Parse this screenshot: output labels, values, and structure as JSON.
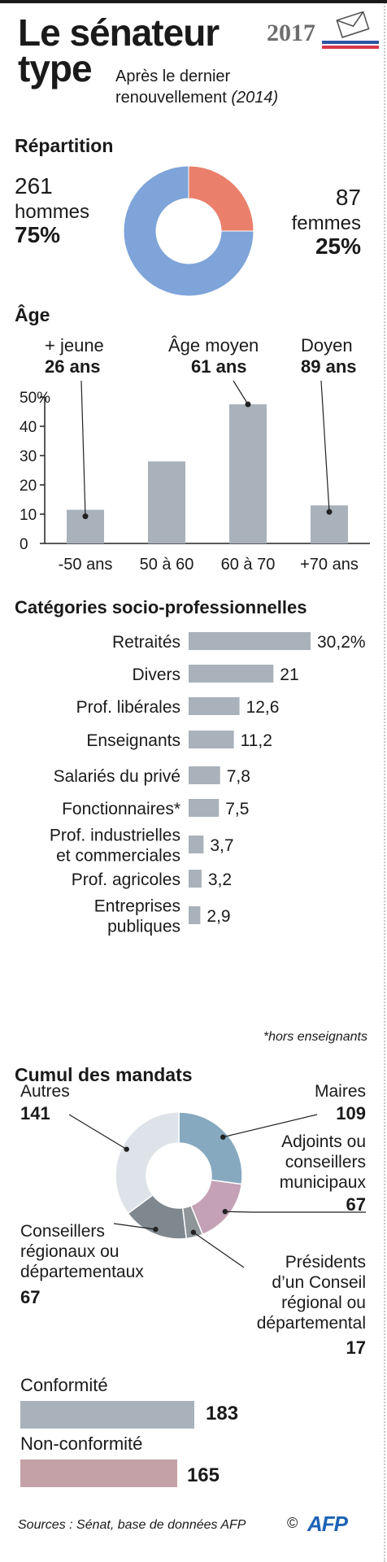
{
  "header": {
    "title_line1": "Le sénateur",
    "title_line2": "type",
    "subtitle_line1": "Après le dernier",
    "subtitle_line2": "renouvellement",
    "subtitle_year": "(2014)",
    "logo_year": "2017",
    "logo_icon": "ballot-envelope-icon"
  },
  "repartition": {
    "title": "Répartition",
    "men_count": "261",
    "men_label": "hommes",
    "men_pct": "75%",
    "women_count": "87",
    "women_label": "femmes",
    "women_pct": "25%"
  },
  "age": {
    "title": "Âge",
    "youngest_label": "+ jeune",
    "youngest_value": "26 ans",
    "average_label": "Âge moyen",
    "average_value": "61 ans",
    "eldest_label": "Doyen",
    "eldest_value": "89 ans"
  },
  "categories": {
    "title": "Catégories socio-professionnelles",
    "footnote": "*hors enseignants"
  },
  "mandats": {
    "title": "Cumul des mandats",
    "conformite_label": "Conformité",
    "conformite_value": "183",
    "non_conformite_label": "Non-conformité",
    "non_conformite_value": "165"
  },
  "footer": {
    "source": "Sources : Sénat, base de données AFP",
    "copyright": "©",
    "logo": "AFP"
  },
  "colors": {
    "men": "#7ea4d9",
    "women": "#ea7f6b",
    "bars": "#a9b2bb",
    "mayors": "#86a9bf",
    "adjoints": "#c4a1b5",
    "presidents": "#8f9699",
    "conseillers": "#7f888f",
    "autres": "#dde3e8",
    "conformite": "#a9b2bb",
    "non_conformite": "#c4a1a6",
    "afp_blue": "#1c62b5"
  },
  "chart_data": [
    {
      "type": "pie",
      "title": "Répartition",
      "donut": true,
      "labels": [
        "hommes",
        "femmes"
      ],
      "values": [
        261,
        87
      ],
      "percent": [
        75,
        25
      ]
    },
    {
      "type": "bar",
      "title": "Âge",
      "ylabel": "%",
      "categories": [
        "-50 ans",
        "50 à 60",
        "60 à 70",
        "+70 ans"
      ],
      "values": [
        11.5,
        28,
        47.5,
        13
      ],
      "ylim": [
        0,
        50
      ],
      "yticks": [
        "0",
        "10",
        "20",
        "30",
        "40",
        "50%"
      ],
      "grid": false
    },
    {
      "type": "bar",
      "orientation": "horizontal",
      "title": "Catégories socio-professionnelles",
      "categories": [
        "Retraités",
        "Divers",
        "Prof. libérales",
        "Enseignants",
        "Salariés du privé",
        "Fonctionnaires*",
        "Prof. industrielles et commerciales",
        "Prof. agricoles",
        "Entreprises publiques"
      ],
      "labels_lines": [
        [
          "Retraités"
        ],
        [
          "Divers"
        ],
        [
          "Prof. libérales"
        ],
        [
          "Enseignants"
        ],
        [
          "Salariés du privé"
        ],
        [
          "Fonctionnaires*"
        ],
        [
          "Prof. industrielles",
          "et commerciales"
        ],
        [
          "Prof. agricoles"
        ],
        [
          "Entreprises",
          "publiques"
        ]
      ],
      "values": [
        30.2,
        21,
        12.6,
        11.2,
        7.8,
        7.5,
        3.7,
        3.2,
        2.9
      ],
      "value_labels": [
        "30,2%",
        "21",
        "12,6",
        "11,2",
        "7,8",
        "7,5",
        "3,7",
        "3,2",
        "2,9"
      ]
    },
    {
      "type": "pie",
      "title": "Cumul des mandats",
      "donut": true,
      "labels": [
        "Maires",
        "Adjoints ou conseillers municipaux",
        "Présidents d'un Conseil régional ou départemental",
        "Conseillers régionaux ou départementaux",
        "Autres"
      ],
      "labels_lines": [
        [
          "Maires"
        ],
        [
          "Adjoints ou",
          "conseillers",
          "municipaux"
        ],
        [
          "Présidents",
          "d’un Conseil",
          "régional ou",
          "départemental"
        ],
        [
          "Conseillers",
          "régionaux ou",
          "départementaux"
        ],
        [
          "Autres"
        ]
      ],
      "values": [
        109,
        67,
        17,
        67,
        141
      ]
    },
    {
      "type": "bar",
      "orientation": "horizontal",
      "categories": [
        "Conformité",
        "Non-conformité"
      ],
      "values": [
        183,
        165
      ]
    }
  ]
}
